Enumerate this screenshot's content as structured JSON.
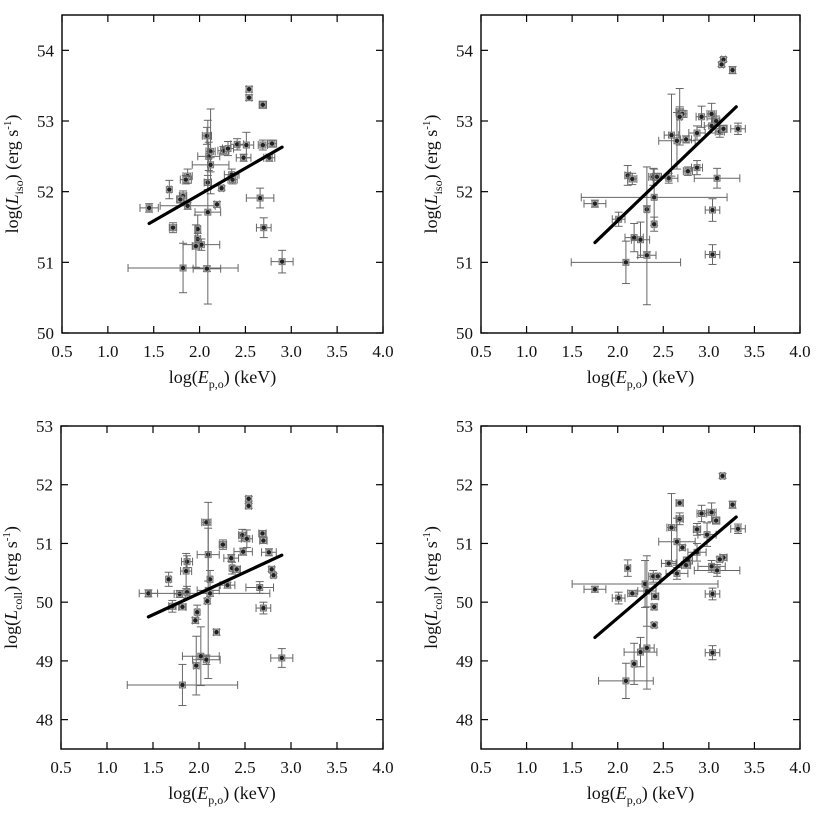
{
  "chart_data": [
    {
      "type": "scatter",
      "panel": "top-left",
      "xlabel": {
        "pre": "log(",
        "var": "E",
        "sub": "p,o",
        "post": ") (keV)"
      },
      "ylabel": {
        "pre": "log(",
        "var": "L",
        "sub": "iso",
        "post": ") (erg s",
        "sup": "-1",
        "end": ")"
      },
      "xlim": [
        0.5,
        4.0
      ],
      "ylim": [
        50,
        54.5
      ],
      "xticks": [
        "0.5",
        "1.0",
        "1.5",
        "2.0",
        "2.5",
        "3.0",
        "3.5",
        "4.0"
      ],
      "yticks": [
        "50",
        "51",
        "52",
        "53",
        "54"
      ],
      "fit_line": [
        [
          1.45,
          51.55
        ],
        [
          2.9,
          52.63
        ]
      ],
      "points": [
        [
          2.54,
          53.45,
          0.03,
          0.04
        ],
        [
          2.54,
          53.33,
          0.03,
          0.04
        ],
        [
          2.69,
          53.23,
          0.04,
          0.05
        ],
        [
          2.08,
          52.79,
          0.05,
          0.12
        ],
        [
          2.12,
          52.57,
          0.05,
          0.6
        ],
        [
          2.26,
          52.58,
          0.06,
          0.06
        ],
        [
          2.31,
          52.61,
          0.06,
          0.1
        ],
        [
          2.41,
          52.67,
          0.07,
          0.08
        ],
        [
          2.51,
          52.66,
          0.08,
          0.18
        ],
        [
          2.69,
          52.66,
          0.05,
          0.07
        ],
        [
          2.79,
          52.68,
          0.05,
          0.05
        ],
        [
          2.1,
          52.5,
          0.12,
          0.2
        ],
        [
          2.48,
          52.48,
          0.08,
          0.05
        ],
        [
          2.76,
          52.48,
          0.06,
          0.05
        ],
        [
          2.12,
          52.38,
          0.2,
          0.1
        ],
        [
          2.35,
          52.24,
          0.08,
          0.08
        ],
        [
          2.36,
          52.17,
          0.05,
          0.06
        ],
        [
          1.87,
          52.22,
          0.05,
          0.1
        ],
        [
          1.85,
          52.17,
          0.06,
          0.06
        ],
        [
          2.09,
          52.13,
          0.04,
          0.1
        ],
        [
          1.67,
          52.03,
          0.02,
          0.13
        ],
        [
          2.24,
          52.05,
          0.02,
          0.03
        ],
        [
          1.82,
          51.94,
          0.04,
          0.07
        ],
        [
          1.79,
          51.89,
          0.04,
          0.05
        ],
        [
          2.66,
          51.91,
          0.15,
          0.14
        ],
        [
          1.45,
          51.77,
          0.1,
          0.06
        ],
        [
          1.87,
          51.8,
          0.3,
          0.05
        ],
        [
          2.19,
          51.82,
          0.03,
          0.04
        ],
        [
          2.09,
          51.71,
          0.14,
          1.3
        ],
        [
          1.71,
          51.49,
          0.04,
          0.07
        ],
        [
          2.7,
          51.49,
          0.08,
          0.14
        ],
        [
          1.98,
          51.47,
          0.03,
          0.2
        ],
        [
          1.98,
          51.33,
          0.03,
          0.08
        ],
        [
          2.02,
          51.25,
          0.2,
          0.08
        ],
        [
          1.96,
          51.23,
          0.04,
          0.3
        ],
        [
          1.82,
          50.92,
          0.6,
          0.35
        ],
        [
          2.08,
          50.91,
          0.15,
          0.04
        ],
        [
          2.9,
          51.01,
          0.12,
          0.16
        ]
      ]
    },
    {
      "type": "scatter",
      "panel": "top-right",
      "xlabel": {
        "pre": "log(",
        "var": "E",
        "sub": "p,o",
        "post": ") (keV)"
      },
      "ylabel": {
        "pre": "log(",
        "var": "L",
        "sub": "iso",
        "post": ") (erg s",
        "sup": "-1",
        "end": ")"
      },
      "xlim": [
        0.5,
        4.0
      ],
      "ylim": [
        50,
        54.5
      ],
      "xticks": [
        "0.5",
        "1.0",
        "1.5",
        "2.0",
        "2.5",
        "3.0",
        "3.5",
        "4.0"
      ],
      "yticks": [
        "50",
        "51",
        "52",
        "53",
        "54"
      ],
      "fit_line": [
        [
          1.75,
          51.28
        ],
        [
          3.3,
          53.2
        ]
      ],
      "points": [
        [
          3.16,
          53.87,
          0.02,
          0.03
        ],
        [
          3.14,
          53.8,
          0.02,
          0.03
        ],
        [
          3.26,
          53.72,
          0.03,
          0.05
        ],
        [
          2.68,
          53.13,
          0.04,
          0.07
        ],
        [
          2.71,
          53.1,
          0.05,
          0.05
        ],
        [
          2.68,
          53.06,
          0.02,
          0.4
        ],
        [
          2.92,
          53.06,
          0.06,
          0.15
        ],
        [
          3.03,
          53.1,
          0.05,
          0.15
        ],
        [
          3.08,
          53.0,
          0.04,
          0.07
        ],
        [
          3.03,
          52.93,
          0.08,
          0.1
        ],
        [
          3.12,
          52.85,
          0.05,
          0.08
        ],
        [
          3.16,
          52.89,
          0.04,
          0.05
        ],
        [
          3.32,
          52.89,
          0.08,
          0.08
        ],
        [
          2.87,
          52.83,
          0.09,
          0.1
        ],
        [
          2.59,
          52.8,
          0.08,
          0.58
        ],
        [
          2.65,
          52.72,
          0.2,
          0.4
        ],
        [
          2.75,
          52.74,
          0.06,
          0.05
        ],
        [
          2.87,
          52.34,
          0.06,
          0.1
        ],
        [
          2.77,
          52.29,
          0.05,
          0.06
        ],
        [
          3.09,
          52.19,
          0.25,
          0.14
        ],
        [
          2.56,
          52.19,
          0.1,
          0.07
        ],
        [
          2.11,
          52.23,
          0.03,
          0.14
        ],
        [
          2.16,
          52.18,
          0.05,
          0.08
        ],
        [
          2.39,
          52.21,
          0.05,
          0.12
        ],
        [
          2.43,
          52.21,
          0.05,
          0.05
        ],
        [
          2.4,
          51.92,
          0.8,
          0.4
        ],
        [
          1.75,
          51.83,
          0.12,
          0.05
        ],
        [
          2.32,
          51.75,
          0.02,
          0.6
        ],
        [
          3.04,
          51.74,
          0.08,
          0.16
        ],
        [
          2.01,
          51.61,
          0.07,
          0.1
        ],
        [
          2.4,
          51.54,
          0.02,
          0.1
        ],
        [
          2.18,
          51.35,
          0.1,
          0.2
        ],
        [
          2.25,
          51.32,
          0.1,
          0.25
        ],
        [
          2.32,
          51.1,
          0.1,
          0.7
        ],
        [
          3.04,
          51.11,
          0.08,
          0.14
        ],
        [
          2.09,
          51.0,
          0.6,
          0.3
        ]
      ]
    },
    {
      "type": "scatter",
      "panel": "bottom-left",
      "xlabel": {
        "pre": "log(",
        "var": "E",
        "sub": "p,o",
        "post": ") (keV)"
      },
      "ylabel": {
        "pre": "log(",
        "var": "L",
        "sub": "coll",
        "post": ") (erg s",
        "sup": "-1",
        "end": ")"
      },
      "xlim": [
        0.5,
        4.0
      ],
      "ylim": [
        47.5,
        53
      ],
      "xticks": [
        "0.5",
        "1.0",
        "1.5",
        "2.0",
        "2.5",
        "3.0",
        "3.5",
        "4.0"
      ],
      "yticks": [
        "48",
        "49",
        "50",
        "51",
        "52",
        "53"
      ],
      "fit_line": [
        [
          1.45,
          49.75
        ],
        [
          2.9,
          50.8
        ]
      ],
      "points": [
        [
          2.54,
          51.76,
          0.03,
          0.04
        ],
        [
          2.54,
          51.64,
          0.03,
          0.04
        ],
        [
          2.08,
          51.36,
          0.05,
          0.04
        ],
        [
          2.69,
          51.17,
          0.04,
          0.05
        ],
        [
          2.7,
          51.05,
          0.04,
          0.05
        ],
        [
          2.47,
          51.14,
          0.04,
          0.1
        ],
        [
          2.52,
          51.08,
          0.06,
          0.15
        ],
        [
          2.26,
          50.98,
          0.04,
          0.08
        ],
        [
          2.1,
          50.81,
          0.12,
          0.45
        ],
        [
          2.48,
          50.86,
          0.1,
          0.06
        ],
        [
          2.76,
          50.85,
          0.08,
          0.06
        ],
        [
          2.35,
          50.75,
          0.08,
          0.06
        ],
        [
          1.87,
          50.69,
          0.06,
          0.1
        ],
        [
          1.86,
          50.53,
          0.06,
          0.3
        ],
        [
          2.36,
          50.58,
          0.02,
          0.1
        ],
        [
          2.41,
          50.56,
          0.04,
          0.05
        ],
        [
          2.79,
          50.56,
          0.03,
          0.04
        ],
        [
          2.81,
          50.46,
          0.02,
          0.03
        ],
        [
          1.67,
          50.39,
          0.02,
          0.12
        ],
        [
          2.12,
          50.39,
          0.02,
          0.15
        ],
        [
          2.31,
          50.29,
          0.08,
          0.05
        ],
        [
          2.66,
          50.25,
          0.15,
          0.1
        ],
        [
          1.45,
          50.15,
          0.1,
          0.06
        ],
        [
          1.79,
          50.14,
          0.06,
          0.06
        ],
        [
          1.87,
          50.17,
          0.02,
          0.1
        ],
        [
          2.1,
          50.2,
          0.12,
          1.5
        ],
        [
          2.12,
          50.15,
          0.65,
          0.05
        ],
        [
          2.09,
          50.02,
          0.02,
          0.05
        ],
        [
          1.71,
          49.93,
          0.04,
          0.1
        ],
        [
          1.82,
          49.92,
          0.04,
          0.04
        ],
        [
          2.7,
          49.9,
          0.08,
          0.1
        ],
        [
          1.98,
          49.83,
          0.02,
          0.12
        ],
        [
          1.96,
          49.69,
          0.03,
          0.05
        ],
        [
          2.19,
          49.49,
          0.03,
          0.05
        ],
        [
          2.02,
          49.08,
          0.2,
          0.5
        ],
        [
          2.08,
          49.02,
          0.15,
          0.08
        ],
        [
          1.97,
          48.92,
          0.03,
          0.5
        ],
        [
          2.9,
          49.05,
          0.12,
          0.16
        ],
        [
          1.82,
          48.59,
          0.6,
          0.35
        ]
      ]
    },
    {
      "type": "scatter",
      "panel": "bottom-right",
      "xlabel": {
        "pre": "log(",
        "var": "E",
        "sub": "p,o",
        "post": ") (keV)"
      },
      "ylabel": {
        "pre": "log(",
        "var": "L",
        "sub": "coll",
        "post": ") (erg s",
        "sup": "-1",
        "end": ")"
      },
      "xlim": [
        0.5,
        4.0
      ],
      "ylim": [
        47.5,
        53
      ],
      "xticks": [
        "0.5",
        "1.0",
        "1.5",
        "2.0",
        "2.5",
        "3.0",
        "3.5",
        "4.0"
      ],
      "yticks": [
        "48",
        "49",
        "50",
        "51",
        "52",
        "53"
      ],
      "fit_line": [
        [
          1.75,
          49.4
        ],
        [
          3.3,
          51.45
        ]
      ],
      "points": [
        [
          3.15,
          52.15,
          0.02,
          0.04
        ],
        [
          3.26,
          51.66,
          0.03,
          0.06
        ],
        [
          2.68,
          51.69,
          0.04,
          0.05
        ],
        [
          2.92,
          51.51,
          0.05,
          0.14
        ],
        [
          3.03,
          51.53,
          0.05,
          0.16
        ],
        [
          2.68,
          51.42,
          0.04,
          0.1
        ],
        [
          3.08,
          51.39,
          0.04,
          0.06
        ],
        [
          2.59,
          51.27,
          0.05,
          0.58
        ],
        [
          2.87,
          51.24,
          0.04,
          0.1
        ],
        [
          2.98,
          51.15,
          0.1,
          0.2
        ],
        [
          3.32,
          51.25,
          0.08,
          0.08
        ],
        [
          2.65,
          51.03,
          0.2,
          0.4
        ],
        [
          2.71,
          50.93,
          0.03,
          0.04
        ],
        [
          2.87,
          50.85,
          0.1,
          0.15
        ],
        [
          3.16,
          50.76,
          0.04,
          0.05
        ],
        [
          3.12,
          50.73,
          0.03,
          0.04
        ],
        [
          2.77,
          50.71,
          0.05,
          0.06
        ],
        [
          2.75,
          50.63,
          0.05,
          0.05
        ],
        [
          2.56,
          50.66,
          0.08,
          0.05
        ],
        [
          3.03,
          50.61,
          0.15,
          0.1
        ],
        [
          3.09,
          50.54,
          0.25,
          0.1
        ],
        [
          2.65,
          50.49,
          0.12,
          0.1
        ],
        [
          2.11,
          50.58,
          0.03,
          0.14
        ],
        [
          2.39,
          50.44,
          0.05,
          0.1
        ],
        [
          2.44,
          50.44,
          0.02,
          0.03
        ],
        [
          2.3,
          50.31,
          0.8,
          0.4
        ],
        [
          1.75,
          50.22,
          0.12,
          0.05
        ],
        [
          2.16,
          50.15,
          0.05,
          0.05
        ],
        [
          2.32,
          50.19,
          0.1,
          0.6
        ],
        [
          3.04,
          50.14,
          0.08,
          0.1
        ],
        [
          2.01,
          50.07,
          0.07,
          0.1
        ],
        [
          2.41,
          50.1,
          0.04,
          0.05
        ],
        [
          2.4,
          49.92,
          0.02,
          0.05
        ],
        [
          2.4,
          49.61,
          0.02,
          0.04
        ],
        [
          2.32,
          49.22,
          0.08,
          0.7
        ],
        [
          2.25,
          49.15,
          0.18,
          0.25
        ],
        [
          3.04,
          49.14,
          0.08,
          0.12
        ],
        [
          2.18,
          48.95,
          0.02,
          0.35
        ],
        [
          2.09,
          48.66,
          0.3,
          0.3
        ]
      ]
    }
  ]
}
